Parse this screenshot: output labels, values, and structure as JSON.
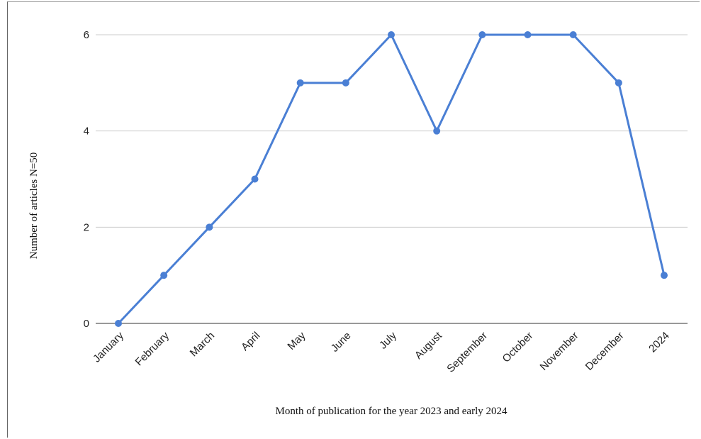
{
  "chart_data": {
    "type": "line",
    "categories": [
      "January",
      "February",
      "March",
      "April",
      "May",
      "June",
      "July",
      "August",
      "September",
      "October",
      "November",
      "December",
      "2024"
    ],
    "series": [
      {
        "values": [
          0,
          1,
          2,
          3,
          5,
          5,
          6,
          4,
          6,
          6,
          6,
          5,
          1
        ]
      }
    ],
    "title": "",
    "xlabel": "Month of publication for the year 2023 and early 2024",
    "ylabel": "Number of articles N=50",
    "ylim": [
      0,
      6
    ],
    "yticks": [
      0,
      2,
      4,
      6
    ],
    "grid": true,
    "legend": "none",
    "colors": {
      "line": "#4a7fd4",
      "grid": "#cccccc"
    }
  }
}
